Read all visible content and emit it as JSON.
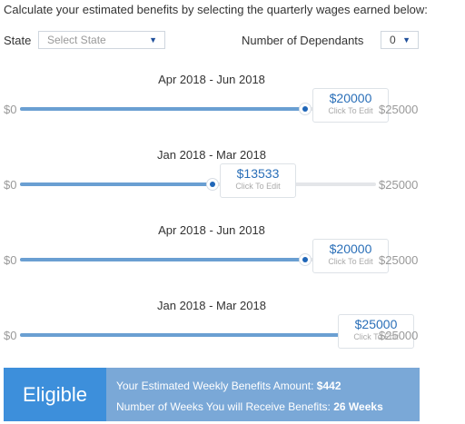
{
  "intro": "Calculate your estimated benefits by selecting the quarterly wages earned below:",
  "state": {
    "label": "State",
    "placeholder": "Select State"
  },
  "dependants": {
    "label": "Number of Dependants",
    "value": "0"
  },
  "sliders": [
    {
      "period": "Apr 2018 - Jun 2018",
      "min": "$0",
      "max": "$25000",
      "value_label": "$20000",
      "edit": "Click To Edit",
      "value": 20000,
      "max_value": 25000
    },
    {
      "period": "Jan 2018 - Mar 2018",
      "min": "$0",
      "max": "$25000",
      "value_label": "$13533",
      "edit": "Click To Edit",
      "value": 13533,
      "max_value": 25000
    },
    {
      "period": "Apr 2018 - Jun 2018",
      "min": "$0",
      "max": "$25000",
      "value_label": "$20000",
      "edit": "Click To Edit",
      "value": 20000,
      "max_value": 25000
    },
    {
      "period": "Jan 2018 - Mar 2018",
      "min": "$0",
      "max": "$25000",
      "value_label": "$25000",
      "edit": "Click To Edit",
      "value": 25000,
      "max_value": 25000
    }
  ],
  "result": {
    "status": "Eligible",
    "weekly_label": "Your Estimated Weekly Benefits Amount:",
    "weekly_value": "$442",
    "weeks_label": "Number of Weeks You will Receive Benefits:",
    "weeks_value": "26 Weeks"
  },
  "colors": {
    "accent": "#1f66b8",
    "fill": "#6a9fd2",
    "eligible": "#3d8fdb",
    "panel": "#7aa8d7"
  }
}
